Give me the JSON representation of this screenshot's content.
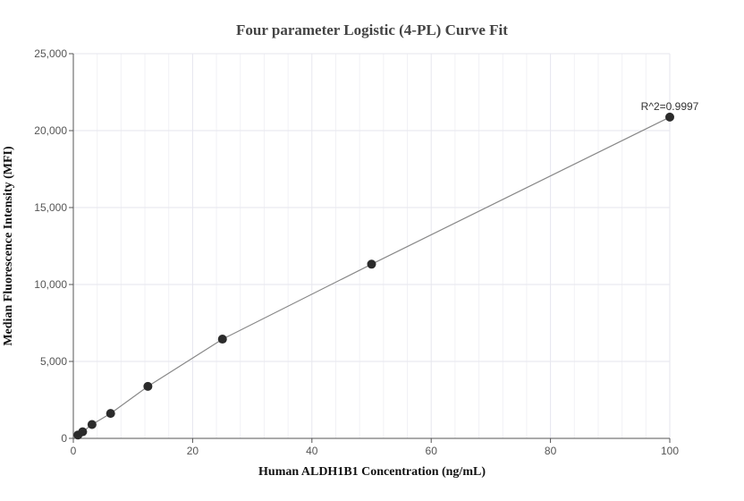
{
  "chart_data": {
    "type": "scatter",
    "title": "Four parameter Logistic (4-PL) Curve Fit",
    "xlabel": "Human ALDH1B1 Concentration (ng/mL)",
    "ylabel": "Median Fluorescence Intensity (MFI)",
    "xlim": [
      0,
      100
    ],
    "ylim": [
      0,
      25000
    ],
    "x_ticks": [
      "0",
      "20",
      "40",
      "60",
      "80",
      "100"
    ],
    "y_ticks": [
      "0",
      "5,000",
      "10,000",
      "15,000",
      "20,000",
      "25,000"
    ],
    "grid": true,
    "series": [
      {
        "x": [
          0.78,
          1.56,
          3.13,
          6.25,
          12.5,
          25,
          50,
          100
        ],
        "y": [
          220,
          430,
          900,
          1620,
          3380,
          6450,
          11320,
          20880
        ]
      }
    ],
    "annotation": "R^2=0.9997",
    "colors": {
      "point": "#2b2b2b",
      "line": "#888888",
      "grid": "#e6e6ee",
      "axis": "#555555"
    }
  }
}
